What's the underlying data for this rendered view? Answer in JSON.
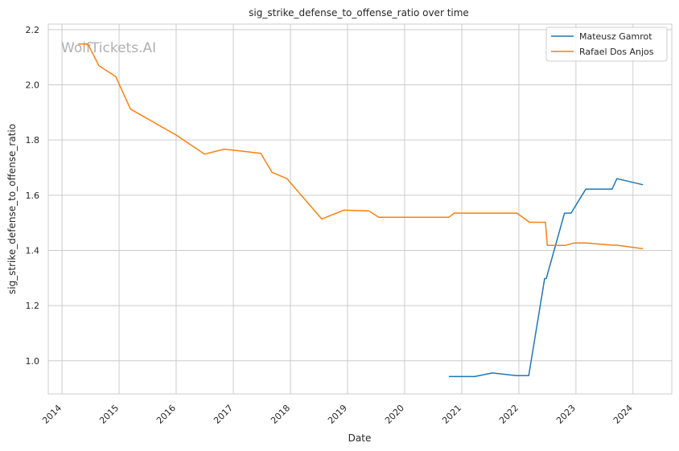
{
  "chart_data": {
    "type": "line",
    "title": "sig_strike_defense_to_offense_ratio over time",
    "xlabel": "Date",
    "ylabel": "sig_strike_defense_to_offense_ratio",
    "watermark": "WolfTickets.AI",
    "xlim": [
      "2013-10-05",
      "2024-09-05"
    ],
    "ylim": [
      0.88,
      2.22
    ],
    "x_ticks": [
      "2014",
      "2015",
      "2016",
      "2017",
      "2018",
      "2019",
      "2020",
      "2021",
      "2022",
      "2023",
      "2024"
    ],
    "y_ticks": [
      "1.0",
      "1.2",
      "1.4",
      "1.6",
      "1.8",
      "2.0",
      "2.2"
    ],
    "grid": true,
    "legend_position": "top-right",
    "series": [
      {
        "name": "Mateusz Gamrot",
        "color": "#1f77b4",
        "points": [
          [
            "2020-10-10",
            0.943
          ],
          [
            "2021-03-25",
            0.943
          ],
          [
            "2021-07-15",
            0.956
          ],
          [
            "2021-12-20",
            0.946
          ],
          [
            "2022-03-05",
            0.946
          ],
          [
            "2022-06-15",
            1.298
          ],
          [
            "2022-06-25",
            1.298
          ],
          [
            "2022-10-20",
            1.535
          ],
          [
            "2022-12-01",
            1.535
          ],
          [
            "2023-03-05",
            1.622
          ],
          [
            "2023-08-20",
            1.622
          ],
          [
            "2023-09-20",
            1.66
          ],
          [
            "2024-03-05",
            1.638
          ]
        ]
      },
      {
        "name": "Rafael Dos Anjos",
        "color": "#ff7f0e",
        "points": [
          [
            "2014-04-15",
            2.148
          ],
          [
            "2014-06-15",
            2.148
          ],
          [
            "2014-08-25",
            2.069
          ],
          [
            "2014-12-10",
            2.03
          ],
          [
            "2015-03-15",
            1.912
          ],
          [
            "2016-01-01",
            1.818
          ],
          [
            "2016-07-01",
            1.749
          ],
          [
            "2016-11-05",
            1.767
          ],
          [
            "2017-06-25",
            1.752
          ],
          [
            "2017-09-05",
            1.683
          ],
          [
            "2017-12-10",
            1.66
          ],
          [
            "2018-07-20",
            1.514
          ],
          [
            "2018-12-08",
            1.546
          ],
          [
            "2019-05-18",
            1.543
          ],
          [
            "2019-07-20",
            1.52
          ],
          [
            "2020-01-01",
            1.52
          ],
          [
            "2020-10-10",
            1.52
          ],
          [
            "2020-11-14",
            1.535
          ],
          [
            "2021-12-20",
            1.535
          ],
          [
            "2022-03-10",
            1.502
          ],
          [
            "2022-06-20",
            1.502
          ],
          [
            "2022-07-02",
            1.418
          ],
          [
            "2022-10-25",
            1.418
          ],
          [
            "2022-12-20",
            1.427
          ],
          [
            "2023-03-05",
            1.427
          ],
          [
            "2023-08-20",
            1.419
          ],
          [
            "2023-09-20",
            1.419
          ],
          [
            "2024-03-05",
            1.406
          ]
        ]
      }
    ]
  }
}
